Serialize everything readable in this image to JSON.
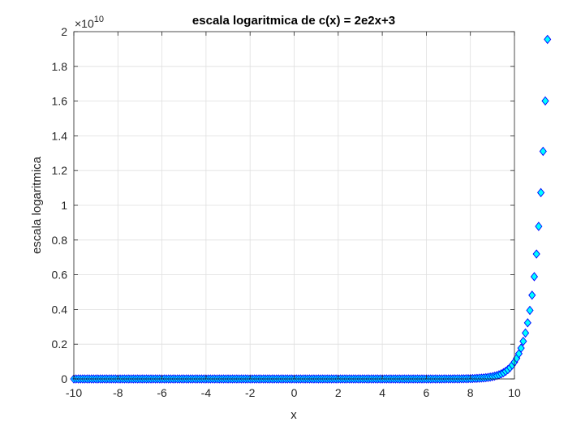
{
  "chart_data": {
    "type": "scatter",
    "title": "escala logaritmica de c(x) = 2e2x+3",
    "xlabel": "x",
    "ylabel": "escala logaritmica",
    "xlim": [
      -10,
      10
    ],
    "ylim": [
      0,
      20000000000
    ],
    "x_ticks": [
      -10,
      -8,
      -6,
      -4,
      -2,
      0,
      2,
      4,
      6,
      8,
      10
    ],
    "x_tick_labels": [
      "-10",
      "-8",
      "-6",
      "-4",
      "-2",
      "0",
      "2",
      "4",
      "6",
      "8",
      "10"
    ],
    "y_ticks": [
      0,
      2000000000,
      4000000000,
      6000000000,
      8000000000,
      10000000000,
      12000000000,
      14000000000,
      16000000000,
      18000000000,
      20000000000
    ],
    "y_tick_labels": [
      "0",
      "0.2",
      "0.4",
      "0.6",
      "0.8",
      "1",
      "1.2",
      "1.4",
      "1.6",
      "1.8",
      "2"
    ],
    "y_exponent_base": "×10",
    "y_exponent": "10",
    "grid": true,
    "marker": "diamond",
    "marker_face_color": "#00ffff",
    "marker_edge_color": "#0000ff",
    "series": [
      {
        "x_start": -10,
        "x_end": 10,
        "x_step": 0.1,
        "y_values": [
          4e-09,
          5e-09,
          6e-09,
          7e-09,
          9e-09,
          1.1e-08,
          1.3e-08,
          1.6e-08,
          2e-08,
          2.4e-08,
          3e-08,
          3.6e-08,
          4.4e-08,
          5.4e-08,
          6.6e-08,
          8.1e-08,
          9.9e-08,
          1.2e-07,
          1.5e-07,
          1.8e-07,
          2.2e-07,
          2.7e-07,
          3.3e-07,
          4e-07,
          4.9e-07,
          6e-07,
          7.3e-07,
          9e-07,
          1.1e-06,
          1.3e-06,
          1.6e-06,
          2e-06,
          2.4e-06,
          3e-06,
          3.6e-06,
          4.4e-06,
          5.4e-06,
          6.6e-06,
          8.1e-06,
          9.9e-06,
          1.2e-05,
          1.5e-05,
          1.8e-05,
          2.2e-05,
          2.7e-05,
          3.3e-05,
          4e-05,
          4.9e-05,
          6e-05,
          7.3e-05,
          9e-05,
          0.00011,
          0.00013,
          0.00016,
          0.0002,
          0.00024,
          0.0003,
          0.00036,
          0.00044,
          0.00054,
          0.00066,
          0.00081,
          0.00099,
          0.0012,
          0.0015,
          0.0018,
          0.0022,
          0.0027,
          0.0033,
          0.004,
          0.0049,
          0.006,
          0.0073,
          0.009,
          0.011,
          0.013,
          0.016,
          0.02,
          0.024,
          0.03,
          0.036,
          0.044,
          0.054,
          0.066,
          0.081,
          0.099,
          0.12,
          0.15,
          0.18,
          0.22,
          0.27,
          0.33,
          0.4,
          0.49,
          0.6,
          0.73,
          0.9,
          1.1,
          1.3,
          1.6,
          2.0,
          2.4,
          3.0,
          3.6,
          4.4,
          5.4,
          6.7,
          8.1,
          9.9,
          12.1,
          14.8,
          18.1,
          22.1,
          27.0,
          33.0,
          40.3,
          49.2,
          60.1,
          73.4,
          89.6,
          109,
          134,
          163,
          200,
          244,
          298,
          364,
          445,
          543,
          663,
          810,
          989,
          1208,
          1476,
          1802,
          2201,
          2689,
          3284,
          4011,
          4899,
          5984,
          7309,
          8927,
          10903,
          13317,
          16265,
          19867,
          24265,
          29637,
          36199,
          44214,
          54003,
          65959,
          80562,
          98398,
          120183,
          146791,
          179290,
          218984,
          267466,
          326683,
          399010,
          487349,
          595249,
          727036,
          887998,
          1084595,
          1324716,
          1618003,
          1976218,
          2413750,
          2948132,
          3600867,
          4398074,
          5371810,
          6561106,
          8013688,
          9787888,
          11954883,
          14601564,
          17834332,
          21782694,
          26605146,
          32495450,
          39689791,
          48476980,
          59209712,
          72318682,
          88330234,
          107886500,
          131771660,
          160944800,
          196577210,
          240098030,
          293254740,
          358180700,
          437482000,
          534337500,
          652640200,
          797134000,
          973616000,
          1189148000,
          1452459000,
          1774058000,
          2166744000,
          2646484000,
          3232366000,
          3948014000,
          4822096000,
          5889778000,
          7193674000,
          8786318000,
          10731560000,
          13107460000,
          16009580000,
          19553900000
        ]
      }
    ]
  }
}
